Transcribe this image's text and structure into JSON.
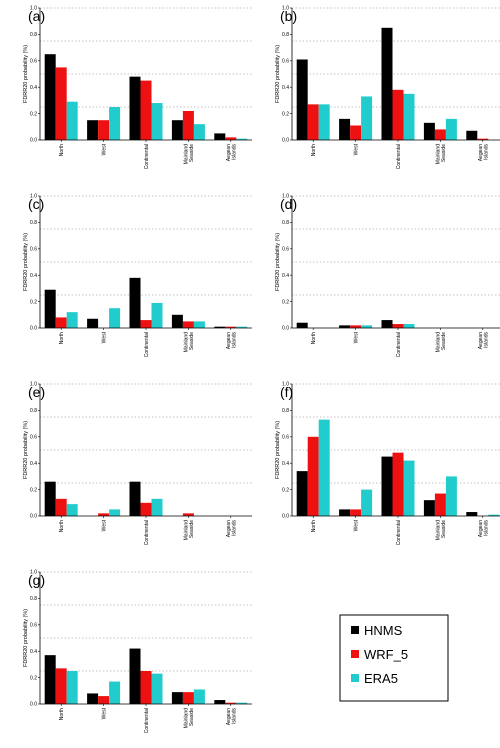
{
  "legend": {
    "items": [
      {
        "name": "HNMS",
        "color": "#000000"
      },
      {
        "name": "WRF_5",
        "color": "#ee1111"
      },
      {
        "name": "ERA5",
        "color": "#22cccc"
      }
    ]
  },
  "chart_data": [
    {
      "label": "(a)",
      "type": "bar",
      "categories": [
        "North",
        "West",
        "Continental",
        "Mainland\nSeaside",
        "Aegean\nIslands"
      ],
      "ylabel": "FDRR20 probability (%)",
      "ylim": [
        0,
        1.0
      ],
      "yticks": [
        "0.0",
        "0.2",
        "0.4",
        "0.6",
        "0.8",
        "1.0"
      ],
      "grid_lines": [
        0.25,
        0.5,
        0.75,
        1.0
      ],
      "series": [
        {
          "name": "HNMS",
          "values": [
            0.65,
            0.15,
            0.48,
            0.15,
            0.05
          ]
        },
        {
          "name": "WRF_5",
          "values": [
            0.55,
            0.15,
            0.45,
            0.22,
            0.02
          ]
        },
        {
          "name": "ERA5",
          "values": [
            0.29,
            0.25,
            0.28,
            0.12,
            0.01
          ]
        }
      ]
    },
    {
      "label": "(b)",
      "type": "bar",
      "categories": [
        "North",
        "West",
        "Continental",
        "Mainland\nSeaside",
        "Aegean\nIslands"
      ],
      "ylabel": "FDRR20 probability (%)",
      "ylim": [
        0,
        1.0
      ],
      "yticks": [
        "0.0",
        "0.2",
        "0.4",
        "0.6",
        "0.8",
        "1.0"
      ],
      "grid_lines": [
        0.25,
        0.5,
        0.75,
        1.0
      ],
      "series": [
        {
          "name": "HNMS",
          "values": [
            0.61,
            0.16,
            0.85,
            0.13,
            0.07
          ]
        },
        {
          "name": "WRF_5",
          "values": [
            0.27,
            0.11,
            0.38,
            0.08,
            0.01
          ]
        },
        {
          "name": "ERA5",
          "values": [
            0.27,
            0.33,
            0.35,
            0.16,
            0.0
          ]
        }
      ]
    },
    {
      "label": "(c)",
      "type": "bar",
      "categories": [
        "North",
        "West",
        "Continental",
        "Mainland\nSeaside",
        "Aegean\nIslands"
      ],
      "ylabel": "FDRR20 probability (%)",
      "ylim": [
        0,
        1.0
      ],
      "yticks": [
        "0.0",
        "0.2",
        "0.4",
        "0.6",
        "0.8",
        "1.0"
      ],
      "grid_lines": [
        0.25,
        0.5,
        0.75,
        1.0
      ],
      "series": [
        {
          "name": "HNMS",
          "values": [
            0.29,
            0.07,
            0.38,
            0.1,
            0.01
          ]
        },
        {
          "name": "WRF_5",
          "values": [
            0.08,
            0.0,
            0.06,
            0.05,
            0.01
          ]
        },
        {
          "name": "ERA5",
          "values": [
            0.12,
            0.15,
            0.19,
            0.05,
            0.01
          ]
        }
      ]
    },
    {
      "label": "(d)",
      "type": "bar",
      "categories": [
        "North",
        "West",
        "Continental",
        "Mainland\nSeaside",
        "Aegean\nIslands"
      ],
      "ylabel": "FDRR20 probability (%)",
      "ylim": [
        0,
        1.0
      ],
      "yticks": [
        "0.0",
        "0.2",
        "0.4",
        "0.6",
        "0.8",
        "1.0"
      ],
      "grid_lines": [
        0.25,
        0.5,
        0.75,
        1.0
      ],
      "series": [
        {
          "name": "HNMS",
          "values": [
            0.04,
            0.02,
            0.06,
            0.0,
            0.0
          ]
        },
        {
          "name": "WRF_5",
          "values": [
            0.0,
            0.02,
            0.03,
            0.0,
            0.0
          ]
        },
        {
          "name": "ERA5",
          "values": [
            0.0,
            0.02,
            0.03,
            0.0,
            0.0
          ]
        }
      ]
    },
    {
      "label": "(e)",
      "type": "bar",
      "categories": [
        "North",
        "West",
        "Continental",
        "Mainland\nSeaside",
        "Aegean\nIslands"
      ],
      "ylabel": "FDRR20 probability (%)",
      "ylim": [
        0,
        1.0
      ],
      "yticks": [
        "0.0",
        "0.2",
        "0.4",
        "0.6",
        "0.8",
        "1.0"
      ],
      "grid_lines": [
        0.25,
        0.5,
        0.75,
        1.0
      ],
      "series": [
        {
          "name": "HNMS",
          "values": [
            0.26,
            0.0,
            0.26,
            0.0,
            0.0
          ]
        },
        {
          "name": "WRF_5",
          "values": [
            0.13,
            0.02,
            0.1,
            0.02,
            0.0
          ]
        },
        {
          "name": "ERA5",
          "values": [
            0.09,
            0.05,
            0.13,
            0.0,
            0.0
          ]
        }
      ]
    },
    {
      "label": "(f)",
      "type": "bar",
      "categories": [
        "North",
        "West",
        "Continental",
        "Mainland\nSeaside",
        "Aegean\nIslands"
      ],
      "ylabel": "FDRR20 probability (%)",
      "ylim": [
        0,
        1.0
      ],
      "yticks": [
        "0.0",
        "0.2",
        "0.4",
        "0.6",
        "0.8",
        "1.0"
      ],
      "grid_lines": [
        0.25,
        0.5,
        0.75,
        1.0
      ],
      "series": [
        {
          "name": "HNMS",
          "values": [
            0.34,
            0.05,
            0.45,
            0.12,
            0.03
          ]
        },
        {
          "name": "WRF_5",
          "values": [
            0.6,
            0.05,
            0.48,
            0.17,
            0.0
          ]
        },
        {
          "name": "ERA5",
          "values": [
            0.73,
            0.2,
            0.42,
            0.3,
            0.01
          ]
        }
      ]
    },
    {
      "label": "(g)",
      "type": "bar",
      "categories": [
        "North",
        "West",
        "Continental",
        "Mainland\nSeaside",
        "Aegean\nIslands"
      ],
      "ylabel": "FDRR20 probability (%)",
      "ylim": [
        0,
        1.0
      ],
      "yticks": [
        "0.0",
        "0.2",
        "0.4",
        "0.6",
        "0.8",
        "1.0"
      ],
      "grid_lines": [
        0.25,
        0.5,
        0.75,
        1.0
      ],
      "series": [
        {
          "name": "HNMS",
          "values": [
            0.37,
            0.08,
            0.42,
            0.09,
            0.03
          ]
        },
        {
          "name": "WRF_5",
          "values": [
            0.27,
            0.06,
            0.25,
            0.09,
            0.01
          ]
        },
        {
          "name": "ERA5",
          "values": [
            0.25,
            0.17,
            0.23,
            0.11,
            0.01
          ]
        }
      ]
    }
  ]
}
